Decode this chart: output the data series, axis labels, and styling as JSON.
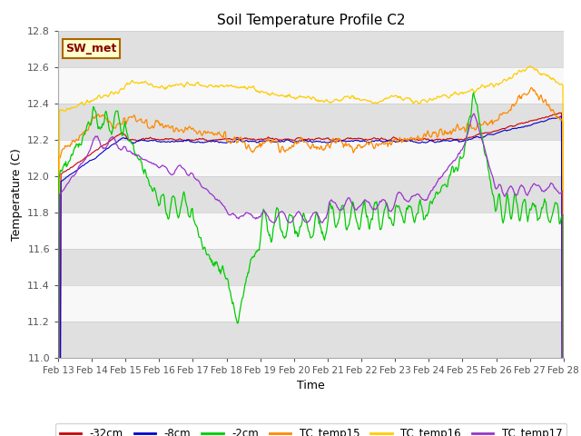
{
  "title": "Soil Temperature Profile C2",
  "xlabel": "Time",
  "ylabel": "Temperature (C)",
  "ylim": [
    11.0,
    12.8
  ],
  "yticks": [
    11.0,
    11.2,
    11.4,
    11.6,
    11.8,
    12.0,
    12.2,
    12.4,
    12.6,
    12.8
  ],
  "xtick_labels": [
    "Feb 13",
    "Feb 14",
    "Feb 15",
    "Feb 16",
    "Feb 17",
    "Feb 18",
    "Feb 19",
    "Feb 20",
    "Feb 21",
    "Feb 22",
    "Feb 23",
    "Feb 24",
    "Feb 25",
    "Feb 26",
    "Feb 27",
    "Feb 28"
  ],
  "n_days": 15,
  "points_per_day": 48,
  "annotation_text": "SW_met",
  "annotation_bg": "#ffffcc",
  "annotation_border": "#aa6600",
  "annotation_text_color": "#880000",
  "colors": {
    "neg32cm": "#cc0000",
    "neg8cm": "#0000cc",
    "neg2cm": "#00cc00",
    "TC_temp15": "#ff8800",
    "TC_temp16": "#ffcc00",
    "TC_temp17": "#9933cc"
  },
  "legend_labels": [
    "-32cm",
    "-8cm",
    "-2cm",
    "TC_temp15",
    "TC_temp16",
    "TC_temp17"
  ],
  "background_color": "#ffffff",
  "band_grey": "#e0e0e0",
  "band_white": "#f8f8f8"
}
